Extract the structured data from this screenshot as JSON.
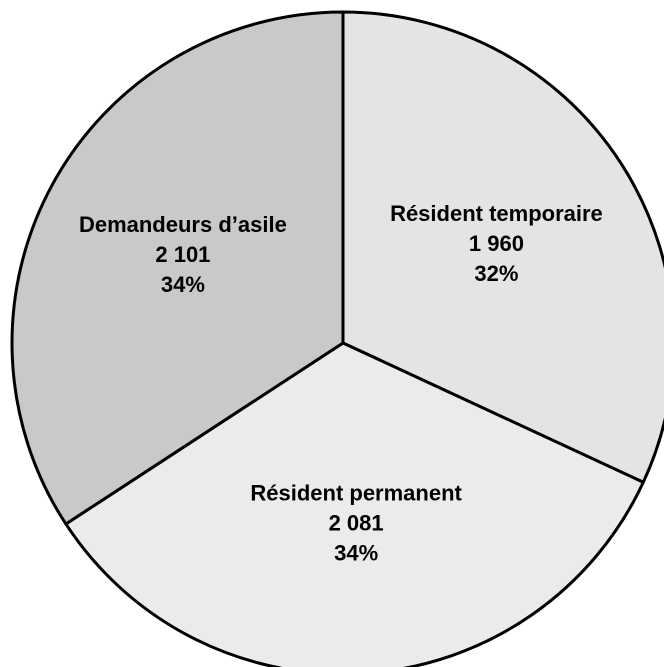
{
  "chart_data": {
    "type": "pie",
    "categories": [
      "Résident temporaire",
      "Résident permanent",
      "Demandeurs d’asile"
    ],
    "values": [
      1960,
      2081,
      2101
    ],
    "value_labels": [
      "1 960",
      "2 081",
      "2 101"
    ],
    "percentages": [
      32,
      34,
      34
    ],
    "percentage_labels": [
      "32%",
      "34%",
      "34%"
    ],
    "colors": [
      "#e4e4e4",
      "#ebebeb",
      "#c9c9c9"
    ]
  }
}
